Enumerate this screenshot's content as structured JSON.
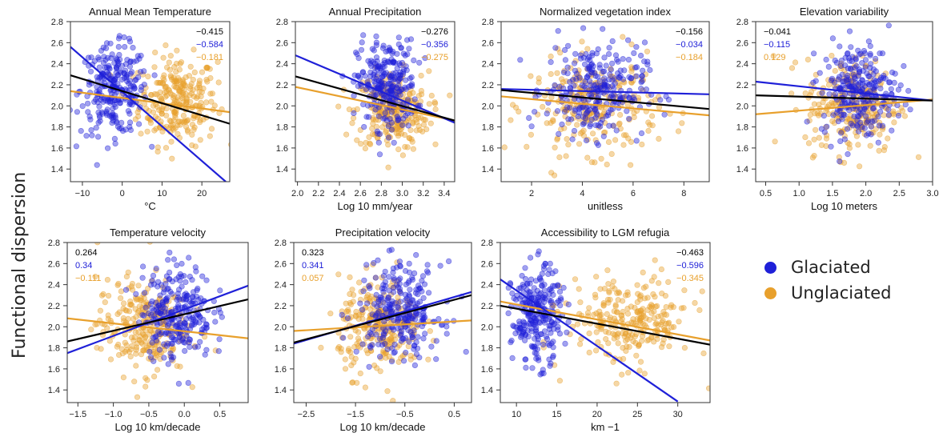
{
  "figure": {
    "ylabel": "Functional dispersion",
    "colors": {
      "glaciated": "#1f20d8",
      "unglaciated": "#e8a02c",
      "overall": "#000000"
    },
    "legend": [
      {
        "name": "Glaciated",
        "color": "#1f20d8"
      },
      {
        "name": "Unglaciated",
        "color": "#e8a02c"
      }
    ]
  },
  "chart_data": [
    {
      "type": "scatter",
      "title": "Annual Mean Temperature",
      "xlabel": "°C",
      "xlim": [
        -13,
        27
      ],
      "ylim": [
        1.28,
        2.8
      ],
      "xticks": [
        "-10",
        "0",
        "10",
        "20"
      ],
      "yticks": [
        "1.4",
        "1.6",
        "1.8",
        "2.0",
        "2.2",
        "2.4",
        "2.6",
        "2.8"
      ],
      "correlations": {
        "overall": "-0.415",
        "glaciated": "-0.584",
        "unglaciated": "-0.181"
      },
      "corr_position": "top-right",
      "series": [
        {
          "name": "Glaciated",
          "x_center": -2,
          "x_spread": 6,
          "y_center": 2.15,
          "y_spread": 0.28
        },
        {
          "name": "Unglaciated",
          "x_center": 14,
          "x_spread": 7,
          "y_center": 2.05,
          "y_spread": 0.28
        }
      ],
      "fits": {
        "overall": [
          [
            -13,
            2.29
          ],
          [
            27,
            1.83
          ]
        ],
        "glaciated": [
          [
            -13,
            2.56
          ],
          [
            26,
            1.28
          ]
        ],
        "unglaciated": [
          [
            -13,
            2.14
          ],
          [
            27,
            1.94
          ]
        ]
      }
    },
    {
      "type": "scatter",
      "title": "Annual Precipitation",
      "xlabel": "Log 10 mm/year",
      "xlim": [
        1.98,
        3.5
      ],
      "ylim": [
        1.28,
        2.8
      ],
      "xticks": [
        "2.0",
        "2.2",
        "2.4",
        "2.6",
        "2.8",
        "3.0",
        "3.2",
        "3.4"
      ],
      "yticks": [
        "1.4",
        "1.6",
        "1.8",
        "2.0",
        "2.2",
        "2.4",
        "2.6",
        "2.8"
      ],
      "correlations": {
        "overall": "-0.276",
        "glaciated": "-0.356",
        "unglaciated": "-0.275"
      },
      "corr_position": "top-right",
      "series": [
        {
          "name": "Glaciated",
          "x_center": 2.85,
          "x_spread": 0.2,
          "y_center": 2.2,
          "y_spread": 0.28
        },
        {
          "name": "Unglaciated",
          "x_center": 2.9,
          "x_spread": 0.25,
          "y_center": 1.95,
          "y_spread": 0.25
        }
      ],
      "fits": {
        "overall": [
          [
            1.98,
            2.28
          ],
          [
            3.5,
            1.86
          ]
        ],
        "glaciated": [
          [
            1.98,
            2.48
          ],
          [
            3.5,
            1.84
          ]
        ],
        "unglaciated": [
          [
            1.98,
            2.18
          ],
          [
            3.5,
            1.86
          ]
        ]
      }
    },
    {
      "type": "scatter",
      "title": "Normalized vegetation index",
      "xlabel": "unitless",
      "xlim": [
        0.8,
        9
      ],
      "ylim": [
        1.28,
        2.8
      ],
      "xticks": [
        "2",
        "4",
        "6",
        "8"
      ],
      "yticks": [
        "1.4",
        "1.6",
        "1.8",
        "2.0",
        "2.2",
        "2.4",
        "2.6",
        "2.8"
      ],
      "correlations": {
        "overall": "-0.156",
        "glaciated": "-0.034",
        "unglaciated": "-0.184"
      },
      "corr_position": "top-right",
      "series": [
        {
          "name": "Glaciated",
          "x_center": 4.5,
          "x_spread": 1.4,
          "y_center": 2.15,
          "y_spread": 0.3
        },
        {
          "name": "Unglaciated",
          "x_center": 4.5,
          "x_spread": 1.8,
          "y_center": 2.0,
          "y_spread": 0.3
        }
      ],
      "fits": {
        "overall": [
          [
            0.8,
            2.15
          ],
          [
            9,
            1.97
          ]
        ],
        "glaciated": [
          [
            0.8,
            2.16
          ],
          [
            9,
            2.11
          ]
        ],
        "unglaciated": [
          [
            0.8,
            2.09
          ],
          [
            9,
            1.91
          ]
        ]
      }
    },
    {
      "type": "scatter",
      "title": "Elevation variability",
      "xlabel": "Log 10 meters",
      "xlim": [
        0.35,
        3.0
      ],
      "ylim": [
        1.28,
        2.8
      ],
      "xticks": [
        "0.5",
        "1.0",
        "1.5",
        "2.0",
        "2.5",
        "3.0"
      ],
      "yticks": [
        "1.4",
        "1.6",
        "1.8",
        "2.0",
        "2.2",
        "2.4",
        "2.6",
        "2.8"
      ],
      "correlations": {
        "overall": "-0.041",
        "glaciated": "-0.115",
        "unglaciated": "0.129"
      },
      "corr_position": "top-left",
      "series": [
        {
          "name": "Glaciated",
          "x_center": 1.9,
          "x_spread": 0.4,
          "y_center": 2.15,
          "y_spread": 0.3
        },
        {
          "name": "Unglaciated",
          "x_center": 1.8,
          "x_spread": 0.5,
          "y_center": 2.0,
          "y_spread": 0.3
        }
      ],
      "fits": {
        "overall": [
          [
            0.35,
            2.1
          ],
          [
            3.0,
            2.05
          ]
        ],
        "glaciated": [
          [
            0.35,
            2.23
          ],
          [
            3.0,
            2.05
          ]
        ],
        "unglaciated": [
          [
            0.35,
            1.92
          ],
          [
            3.0,
            2.06
          ]
        ]
      }
    },
    {
      "type": "scatter",
      "title": "Temperature velocity",
      "xlabel": "Log 10 km/decade",
      "xlim": [
        -1.65,
        0.9
      ],
      "ylim": [
        1.28,
        2.8
      ],
      "xticks": [
        "-1.5",
        "-1.0",
        "-0.5",
        "0.0",
        "0.5"
      ],
      "yticks": [
        "1.4",
        "1.6",
        "1.8",
        "2.0",
        "2.2",
        "2.4",
        "2.6",
        "2.8"
      ],
      "correlations": {
        "overall": "0.264",
        "glaciated": "0.34",
        "unglaciated": "-0.111"
      },
      "corr_position": "top-left",
      "series": [
        {
          "name": "Glaciated",
          "x_center": -0.1,
          "x_spread": 0.35,
          "y_center": 2.15,
          "y_spread": 0.3
        },
        {
          "name": "Unglaciated",
          "x_center": -0.6,
          "x_spread": 0.45,
          "y_center": 2.0,
          "y_spread": 0.3
        }
      ],
      "fits": {
        "overall": [
          [
            -1.65,
            1.86
          ],
          [
            0.9,
            2.26
          ]
        ],
        "glaciated": [
          [
            -1.65,
            1.75
          ],
          [
            0.9,
            2.39
          ]
        ],
        "unglaciated": [
          [
            -1.65,
            2.08
          ],
          [
            0.9,
            1.89
          ]
        ]
      }
    },
    {
      "type": "scatter",
      "title": "Precipitation velocity",
      "xlabel": "Log 10 km/decade",
      "xlim": [
        -2.75,
        0.85
      ],
      "ylim": [
        1.28,
        2.8
      ],
      "xticks": [
        "-2.5",
        "-1.5",
        "-0.5",
        "0.5"
      ],
      "yticks": [
        "1.4",
        "1.6",
        "1.8",
        "2.0",
        "2.2",
        "2.4",
        "2.6",
        "2.8"
      ],
      "correlations": {
        "overall": "0.323",
        "glaciated": "0.341",
        "unglaciated": "0.057"
      },
      "corr_position": "top-left",
      "series": [
        {
          "name": "Glaciated",
          "x_center": -0.6,
          "x_spread": 0.6,
          "y_center": 2.15,
          "y_spread": 0.3
        },
        {
          "name": "Unglaciated",
          "x_center": -1.0,
          "x_spread": 0.6,
          "y_center": 2.0,
          "y_spread": 0.3
        }
      ],
      "fits": {
        "overall": [
          [
            -2.75,
            1.85
          ],
          [
            0.85,
            2.3
          ]
        ],
        "glaciated": [
          [
            -2.75,
            1.84
          ],
          [
            0.85,
            2.33
          ]
        ],
        "unglaciated": [
          [
            -2.75,
            1.96
          ],
          [
            0.85,
            2.06
          ]
        ]
      }
    },
    {
      "type": "scatter",
      "title": "Accessibility to LGM refugia",
      "xlabel": "km −1",
      "xlim": [
        8,
        34
      ],
      "ylim": [
        1.28,
        2.8
      ],
      "xticks": [
        "10",
        "15",
        "20",
        "25",
        "30"
      ],
      "yticks": [
        "1.4",
        "1.6",
        "1.8",
        "2.0",
        "2.2",
        "2.4",
        "2.6",
        "2.8"
      ],
      "correlations": {
        "overall": "-0.463",
        "glaciated": "-0.596",
        "unglaciated": "-0.345"
      },
      "corr_position": "top-right",
      "series": [
        {
          "name": "Glaciated",
          "x_center": 12.5,
          "x_spread": 2.2,
          "y_center": 2.1,
          "y_spread": 0.3
        },
        {
          "name": "Unglaciated",
          "x_center": 24,
          "x_spread": 5.5,
          "y_center": 2.05,
          "y_spread": 0.28
        }
      ],
      "fits": {
        "overall": [
          [
            8,
            2.2
          ],
          [
            34,
            1.83
          ]
        ],
        "glaciated": [
          [
            8,
            2.45
          ],
          [
            30,
            1.29
          ]
        ],
        "unglaciated": [
          [
            8,
            2.24
          ],
          [
            34,
            1.87
          ]
        ]
      }
    }
  ]
}
